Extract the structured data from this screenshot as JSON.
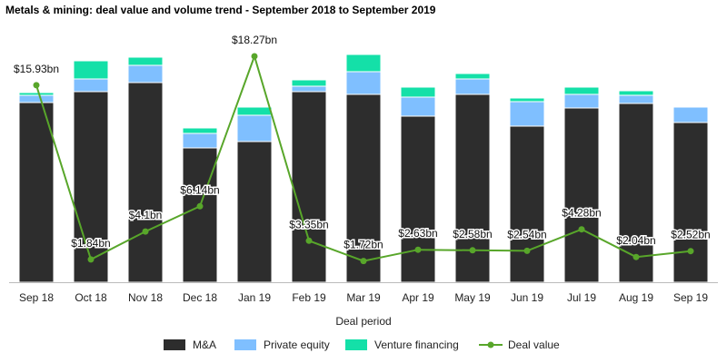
{
  "chart_data": {
    "type": "bar",
    "title": "Metals & mining: deal value and volume trend - September 2018 to September 2019",
    "xlabel": "Deal period",
    "categories": [
      "Sep 18",
      "Oct 18",
      "Nov 18",
      "Dec 18",
      "Jan 19",
      "Feb 19",
      "Mar 19",
      "Apr 19",
      "May 19",
      "Jun 19",
      "Jul 19",
      "Aug 19",
      "Sep 19"
    ],
    "stacked": true,
    "bar_ylim": [
      0,
      260
    ],
    "line_ylim": [
      0,
      20
    ],
    "series": [
      {
        "name": "M&A",
        "kind": "bar",
        "color": "#2d2d2d",
        "values": [
          198,
          210,
          220,
          148,
          155,
          210,
          207,
          183,
          207,
          172,
          192,
          197,
          176
        ]
      },
      {
        "name": "Private equity",
        "kind": "bar",
        "color": "#7fbfff",
        "values": [
          8,
          14,
          19,
          16,
          29,
          6,
          25,
          21,
          17,
          27,
          15,
          9,
          17
        ]
      },
      {
        "name": "Venture financing",
        "kind": "bar",
        "color": "#14e0a8",
        "values": [
          3,
          20,
          9,
          6,
          9,
          7,
          19,
          11,
          6,
          4,
          8,
          5,
          1
        ]
      },
      {
        "name": "Deal value",
        "kind": "line",
        "color": "#58a62a",
        "values": [
          15.93,
          1.84,
          4.1,
          6.14,
          18.27,
          3.35,
          1.72,
          2.63,
          2.58,
          2.54,
          4.28,
          2.04,
          2.52
        ],
        "labels": [
          "$15.93bn",
          "$1.84bn",
          "$4.1bn",
          "$6.14bn",
          "$18.27bn",
          "$3.35bn",
          "$1.72bn",
          "$2.63bn",
          "$2.58bn",
          "$2.54bn",
          "$4.28bn",
          "$2.04bn",
          "$2.52bn"
        ]
      }
    ],
    "legend": {
      "position": "bottom",
      "entries": [
        "M&A",
        "Private equity",
        "Venture financing",
        "Deal value"
      ]
    },
    "grid": false
  }
}
